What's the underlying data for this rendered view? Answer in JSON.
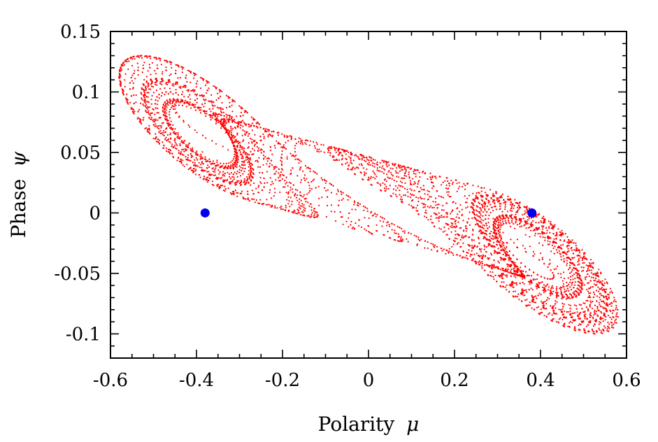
{
  "chart_data": {
    "type": "scatter",
    "title": "",
    "xlabel": "Polarity",
    "xlabel_symbol": "μ",
    "ylabel": "Phase",
    "ylabel_symbol": "ψ",
    "xlim": [
      -0.6,
      0.6
    ],
    "ylim": [
      -0.12,
      0.15
    ],
    "x_ticks": [
      -0.6,
      -0.4,
      -0.2,
      0,
      0.2,
      0.4,
      0.6
    ],
    "x_tick_labels": [
      "-0.6",
      "-0.4",
      "-0.2",
      "0",
      "0.2",
      "0.4",
      "0.6"
    ],
    "y_ticks": [
      -0.1,
      -0.05,
      0,
      0.05,
      0.1,
      0.15
    ],
    "y_tick_labels": [
      "-0.1",
      "-0.05",
      "0",
      "0.05",
      "0.1",
      "0.15"
    ],
    "grid": false,
    "legend": "none",
    "series": [
      {
        "name": "trajectory",
        "color": "#ff0000",
        "marker": "dot",
        "description_points": "double-scroll attractor sampled along trajectory",
        "num_points": 5000
      },
      {
        "name": "fixed points",
        "color": "#0000ee",
        "marker": "circle",
        "x": [
          -0.38,
          0.38
        ],
        "y": [
          0.0,
          0.0
        ]
      }
    ]
  }
}
